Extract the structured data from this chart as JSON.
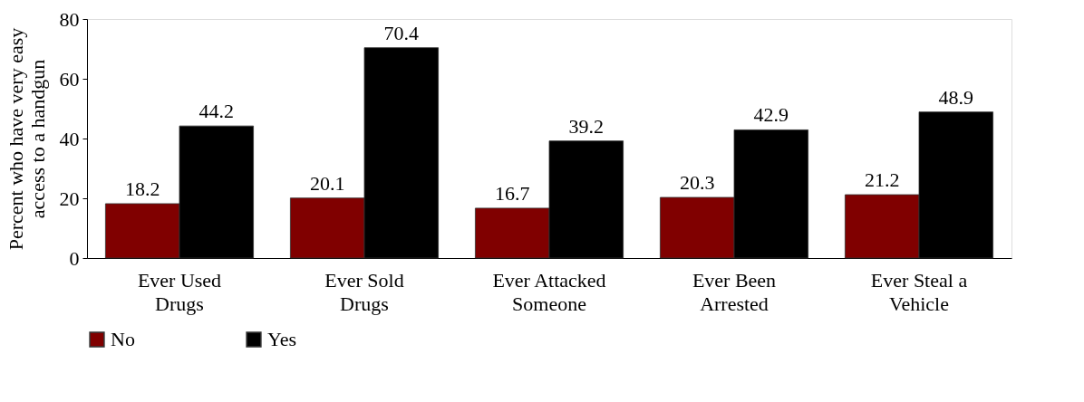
{
  "chart_data": {
    "type": "bar",
    "ylabel": "Percent who have very easy access to a handgun",
    "categories": [
      "Ever Used Drugs",
      "Ever Sold Drugs",
      "Ever Attacked Someone",
      "Ever Been Arrested",
      "Ever Steal a Vehicle"
    ],
    "series": [
      {
        "name": "No",
        "color": "#800000",
        "values": [
          18.2,
          20.1,
          16.7,
          20.3,
          21.2
        ]
      },
      {
        "name": "Yes",
        "color": "#000000",
        "values": [
          44.2,
          70.4,
          39.2,
          42.9,
          48.9
        ]
      }
    ],
    "ylim": [
      0,
      80
    ],
    "yticks": [
      0,
      20,
      40,
      60,
      80
    ],
    "grid": false,
    "legend": "bottom",
    "data_labels": true
  }
}
